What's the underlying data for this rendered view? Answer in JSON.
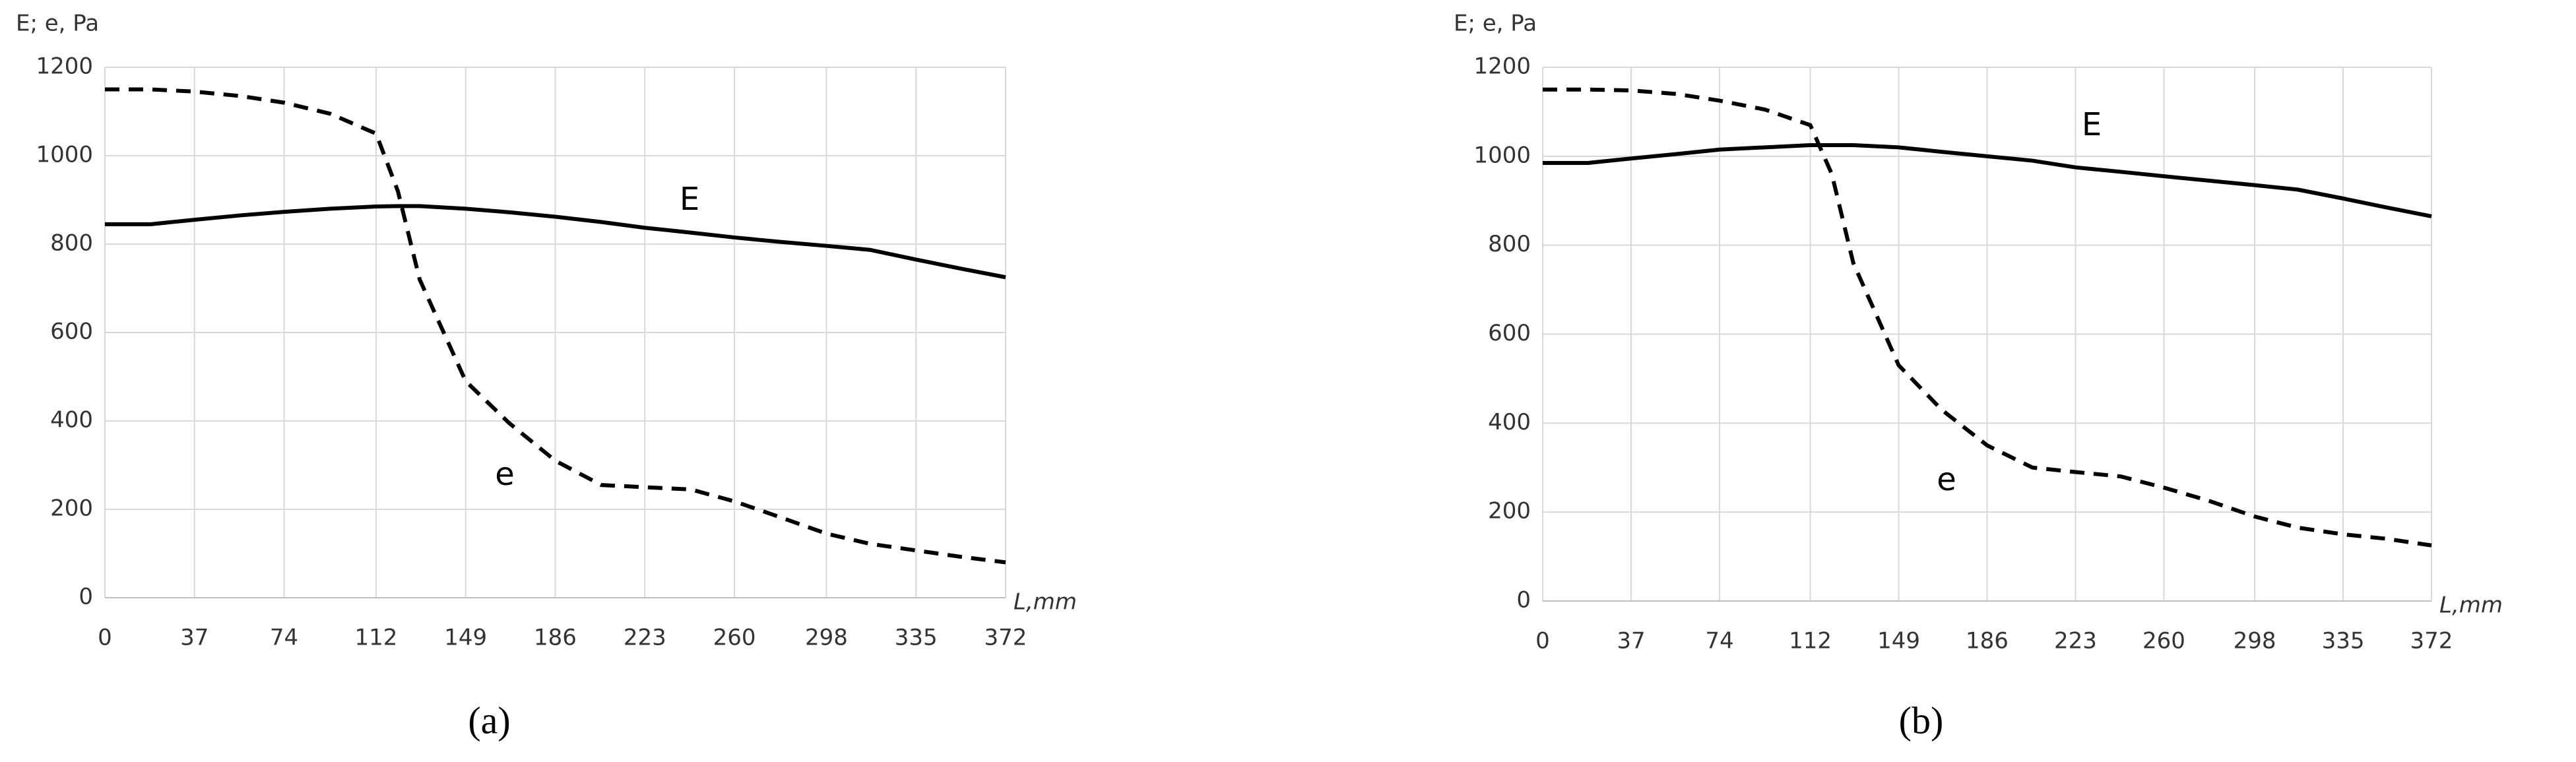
{
  "chart_data": [
    {
      "type": "line",
      "y_label": "E; e, Pa",
      "x_label": "L,mm",
      "caption": "(a)",
      "xlim": [
        0,
        372
      ],
      "xticks": [
        0,
        37,
        74,
        112,
        149,
        186,
        223,
        260,
        298,
        335,
        372
      ],
      "ylim": [
        0,
        1200
      ],
      "yticks": [
        0,
        200,
        400,
        600,
        800,
        1000,
        1200
      ],
      "grid": true,
      "x": [
        0,
        19,
        37,
        56,
        74,
        93,
        112,
        121,
        130,
        149,
        167,
        186,
        205,
        223,
        242,
        260,
        279,
        298,
        316,
        335,
        353,
        372
      ],
      "series": [
        {
          "name": "E",
          "color": "#000000",
          "dashed": false,
          "values": [
            845,
            845,
            855,
            865,
            873,
            880,
            885,
            886,
            886,
            880,
            872,
            862,
            850,
            837,
            826,
            815,
            805,
            796,
            787,
            765,
            745,
            725
          ]
        },
        {
          "name": "e",
          "color": "#000000",
          "dashed": true,
          "values": [
            1150,
            1150,
            1145,
            1135,
            1120,
            1095,
            1050,
            920,
            720,
            490,
            395,
            310,
            255,
            250,
            245,
            218,
            182,
            145,
            122,
            107,
            93,
            80
          ]
        }
      ]
    },
    {
      "type": "line",
      "y_label": "E; e, Pa",
      "x_label": "L,mm",
      "caption": "(b)",
      "xlim": [
        0,
        372
      ],
      "xticks": [
        0,
        37,
        74,
        112,
        149,
        186,
        223,
        260,
        298,
        335,
        372
      ],
      "ylim": [
        0,
        1200
      ],
      "yticks": [
        0,
        200,
        400,
        600,
        800,
        1000,
        1200
      ],
      "grid": true,
      "x": [
        0,
        19,
        37,
        56,
        74,
        93,
        112,
        121,
        130,
        149,
        167,
        186,
        205,
        223,
        242,
        260,
        279,
        298,
        316,
        335,
        353,
        372
      ],
      "series": [
        {
          "name": "E",
          "color": "#000000",
          "dashed": false,
          "values": [
            985,
            985,
            995,
            1005,
            1015,
            1020,
            1025,
            1025,
            1025,
            1020,
            1010,
            1000,
            990,
            975,
            965,
            955,
            945,
            935,
            925,
            905,
            885,
            865
          ]
        },
        {
          "name": "e",
          "color": "#000000",
          "dashed": true,
          "values": [
            1150,
            1150,
            1148,
            1140,
            1125,
            1105,
            1070,
            960,
            760,
            530,
            430,
            350,
            300,
            290,
            280,
            255,
            225,
            190,
            165,
            150,
            140,
            125
          ]
        }
      ]
    }
  ]
}
